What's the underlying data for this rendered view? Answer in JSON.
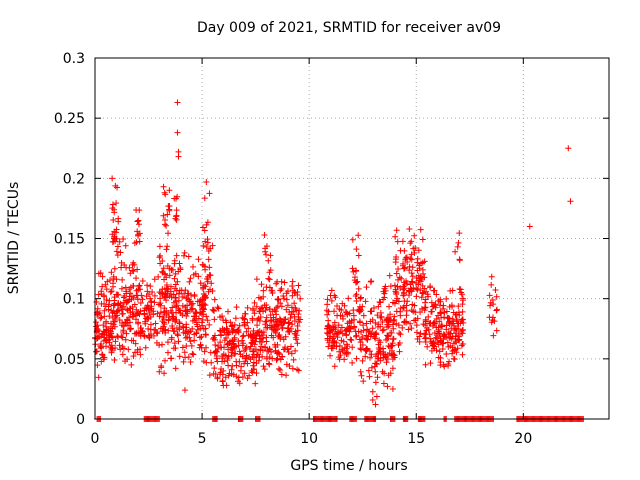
{
  "chart_data": {
    "type": "scatter",
    "title": "Day 009 of 2021, SRMTID for receiver av09",
    "xlabel": "GPS time / hours",
    "ylabel": "SRMTID / TECUs",
    "xlim": [
      0,
      24
    ],
    "ylim": [
      0,
      0.3
    ],
    "x_ticks": [
      0,
      5,
      10,
      15,
      20
    ],
    "x_tick_labels": [
      "0",
      "5",
      "10",
      "15",
      "20"
    ],
    "y_ticks": [
      0,
      0.05,
      0.1,
      0.15,
      0.2,
      0.25,
      0.3
    ],
    "y_tick_labels": [
      "0",
      "0.05",
      "0.1",
      "0.15",
      "0.2",
      "0.25",
      "0.3"
    ],
    "grid": true,
    "marker": "+",
    "colors": {
      "series": "#ff0000",
      "grid": "#aaaaaa",
      "axis": "#000000"
    },
    "series": [
      {
        "name": "SRMTID",
        "note": "Dense scatter of several thousand epochs; clusters approximated below",
        "clusters": [
          {
            "x_range": [
              0.0,
              0.3
            ],
            "y_range": [
              0.028,
              0.13
            ],
            "count": 40
          },
          {
            "x_range": [
              0.3,
              1.0
            ],
            "y_range": [
              0.04,
              0.13
            ],
            "count": 90
          },
          {
            "x_range": [
              0.8,
              1.1
            ],
            "y_range": [
              0.12,
              0.2
            ],
            "count": 25
          },
          {
            "x_range": [
              1.0,
              2.0
            ],
            "y_range": [
              0.04,
              0.15
            ],
            "count": 120
          },
          {
            "x_range": [
              1.8,
              2.1
            ],
            "y_range": [
              0.13,
              0.185
            ],
            "count": 12
          },
          {
            "x_range": [
              2.0,
              3.0
            ],
            "y_range": [
              0.05,
              0.12
            ],
            "count": 80
          },
          {
            "x_range": [
              3.0,
              4.2
            ],
            "y_range": [
              0.03,
              0.15
            ],
            "count": 150
          },
          {
            "x_range": [
              3.1,
              3.5
            ],
            "y_range": [
              0.15,
              0.195
            ],
            "count": 14
          },
          {
            "x_range": [
              3.7,
              3.9
            ],
            "y_range": [
              0.15,
              0.19
            ],
            "count": 8
          },
          {
            "x_range": [
              4.2,
              5.2
            ],
            "y_range": [
              0.04,
              0.14
            ],
            "count": 110
          },
          {
            "x_range": [
              5.0,
              5.5
            ],
            "y_range": [
              0.03,
              0.2
            ],
            "count": 45
          },
          {
            "x_range": [
              5.5,
              7.5
            ],
            "y_range": [
              0.025,
              0.1
            ],
            "count": 200
          },
          {
            "x_range": [
              7.5,
              9.6
            ],
            "y_range": [
              0.03,
              0.125
            ],
            "count": 230
          },
          {
            "x_range": [
              7.9,
              8.2
            ],
            "y_range": [
              0.12,
              0.155
            ],
            "count": 8
          },
          {
            "x_range": [
              10.8,
              12.0
            ],
            "y_range": [
              0.04,
              0.11
            ],
            "count": 110
          },
          {
            "x_range": [
              12.0,
              12.4
            ],
            "y_range": [
              0.04,
              0.16
            ],
            "count": 40
          },
          {
            "x_range": [
              12.4,
              14.0
            ],
            "y_range": [
              0.012,
              0.12
            ],
            "count": 170
          },
          {
            "x_range": [
              14.0,
              15.4
            ],
            "y_range": [
              0.05,
              0.165
            ],
            "count": 150
          },
          {
            "x_range": [
              15.4,
              17.2
            ],
            "y_range": [
              0.04,
              0.115
            ],
            "count": 200
          },
          {
            "x_range": [
              16.8,
              17.1
            ],
            "y_range": [
              0.12,
              0.16
            ],
            "count": 6
          },
          {
            "x_range": [
              18.4,
              18.8
            ],
            "y_range": [
              0.06,
              0.12
            ],
            "count": 18
          }
        ],
        "outliers": [
          {
            "x": 3.85,
            "y": 0.263
          },
          {
            "x": 3.85,
            "y": 0.238
          },
          {
            "x": 3.9,
            "y": 0.222
          },
          {
            "x": 3.9,
            "y": 0.218
          },
          {
            "x": 5.2,
            "y": 0.197
          },
          {
            "x": 3.2,
            "y": 0.193
          },
          {
            "x": 0.8,
            "y": 0.2
          },
          {
            "x": 4.2,
            "y": 0.024
          },
          {
            "x": 13.1,
            "y": 0.012
          },
          {
            "x": 20.3,
            "y": 0.16
          },
          {
            "x": 22.1,
            "y": 0.225
          },
          {
            "x": 22.2,
            "y": 0.181
          }
        ],
        "zero_value_runs": [
          [
            0.1,
            0.25
          ],
          [
            2.3,
            3.0
          ],
          [
            5.5,
            5.7
          ],
          [
            6.7,
            6.9
          ],
          [
            7.5,
            7.7
          ],
          [
            10.2,
            11.0
          ],
          [
            11.0,
            11.3
          ],
          [
            11.9,
            12.2
          ],
          [
            12.6,
            13.1
          ],
          [
            13.8,
            14.0
          ],
          [
            14.4,
            14.6
          ],
          [
            15.1,
            15.4
          ],
          [
            16.3,
            16.4
          ],
          [
            16.8,
            18.6
          ],
          [
            19.7,
            22.8
          ]
        ]
      }
    ]
  }
}
